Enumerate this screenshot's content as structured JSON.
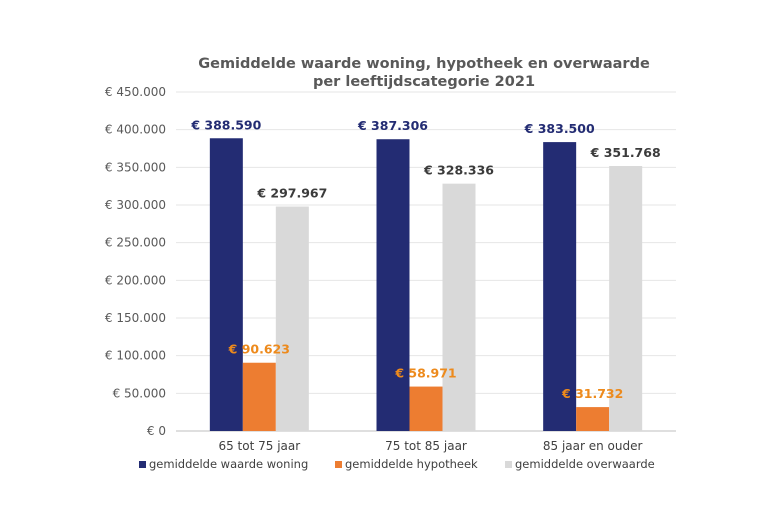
{
  "chart_data": {
    "type": "bar",
    "title_lines": [
      "Gemiddelde waarde woning, hypotheek en overwaarde",
      "per leeftijdscategorie 2021"
    ],
    "categories": [
      "65 tot 75 jaar",
      "75 tot 85 jaar",
      "85 jaar en ouder"
    ],
    "series": [
      {
        "name": "gemiddelde waarde woning",
        "color": "#232C73",
        "label_color": "#232C73",
        "values": [
          388590,
          387306,
          383500
        ],
        "labels": [
          "€ 388.590",
          "€ 387.306",
          "€ 383.500"
        ]
      },
      {
        "name": "gemiddelde hypotheek",
        "color": "#ED7D31",
        "label_color": "#ED8A1C",
        "values": [
          90623,
          58971,
          31732
        ],
        "labels": [
          "€ 90.623",
          "€ 58.971",
          "€ 31.732"
        ]
      },
      {
        "name": "gemiddelde overwaarde",
        "color": "#D9D9D9",
        "label_color": "#3B3B3B",
        "values": [
          297967,
          328336,
          351768
        ],
        "labels": [
          "€ 297.967",
          "€ 328.336",
          "€ 351.768"
        ]
      }
    ],
    "yticks": [
      {
        "value": 0,
        "label": "€ 0"
      },
      {
        "value": 50000,
        "label": "€ 50.000"
      },
      {
        "value": 100000,
        "label": "€ 100.000"
      },
      {
        "value": 150000,
        "label": "€ 150.000"
      },
      {
        "value": 200000,
        "label": "€ 200.000"
      },
      {
        "value": 250000,
        "label": "€ 250.000"
      },
      {
        "value": 300000,
        "label": "€ 300.000"
      },
      {
        "value": 350000,
        "label": "€ 350.000"
      },
      {
        "value": 400000,
        "label": "€ 400.000"
      },
      {
        "value": 450000,
        "label": "€ 450.000"
      }
    ],
    "ylim": [
      0,
      450000
    ],
    "grid": true,
    "legend_position": "bottom"
  }
}
